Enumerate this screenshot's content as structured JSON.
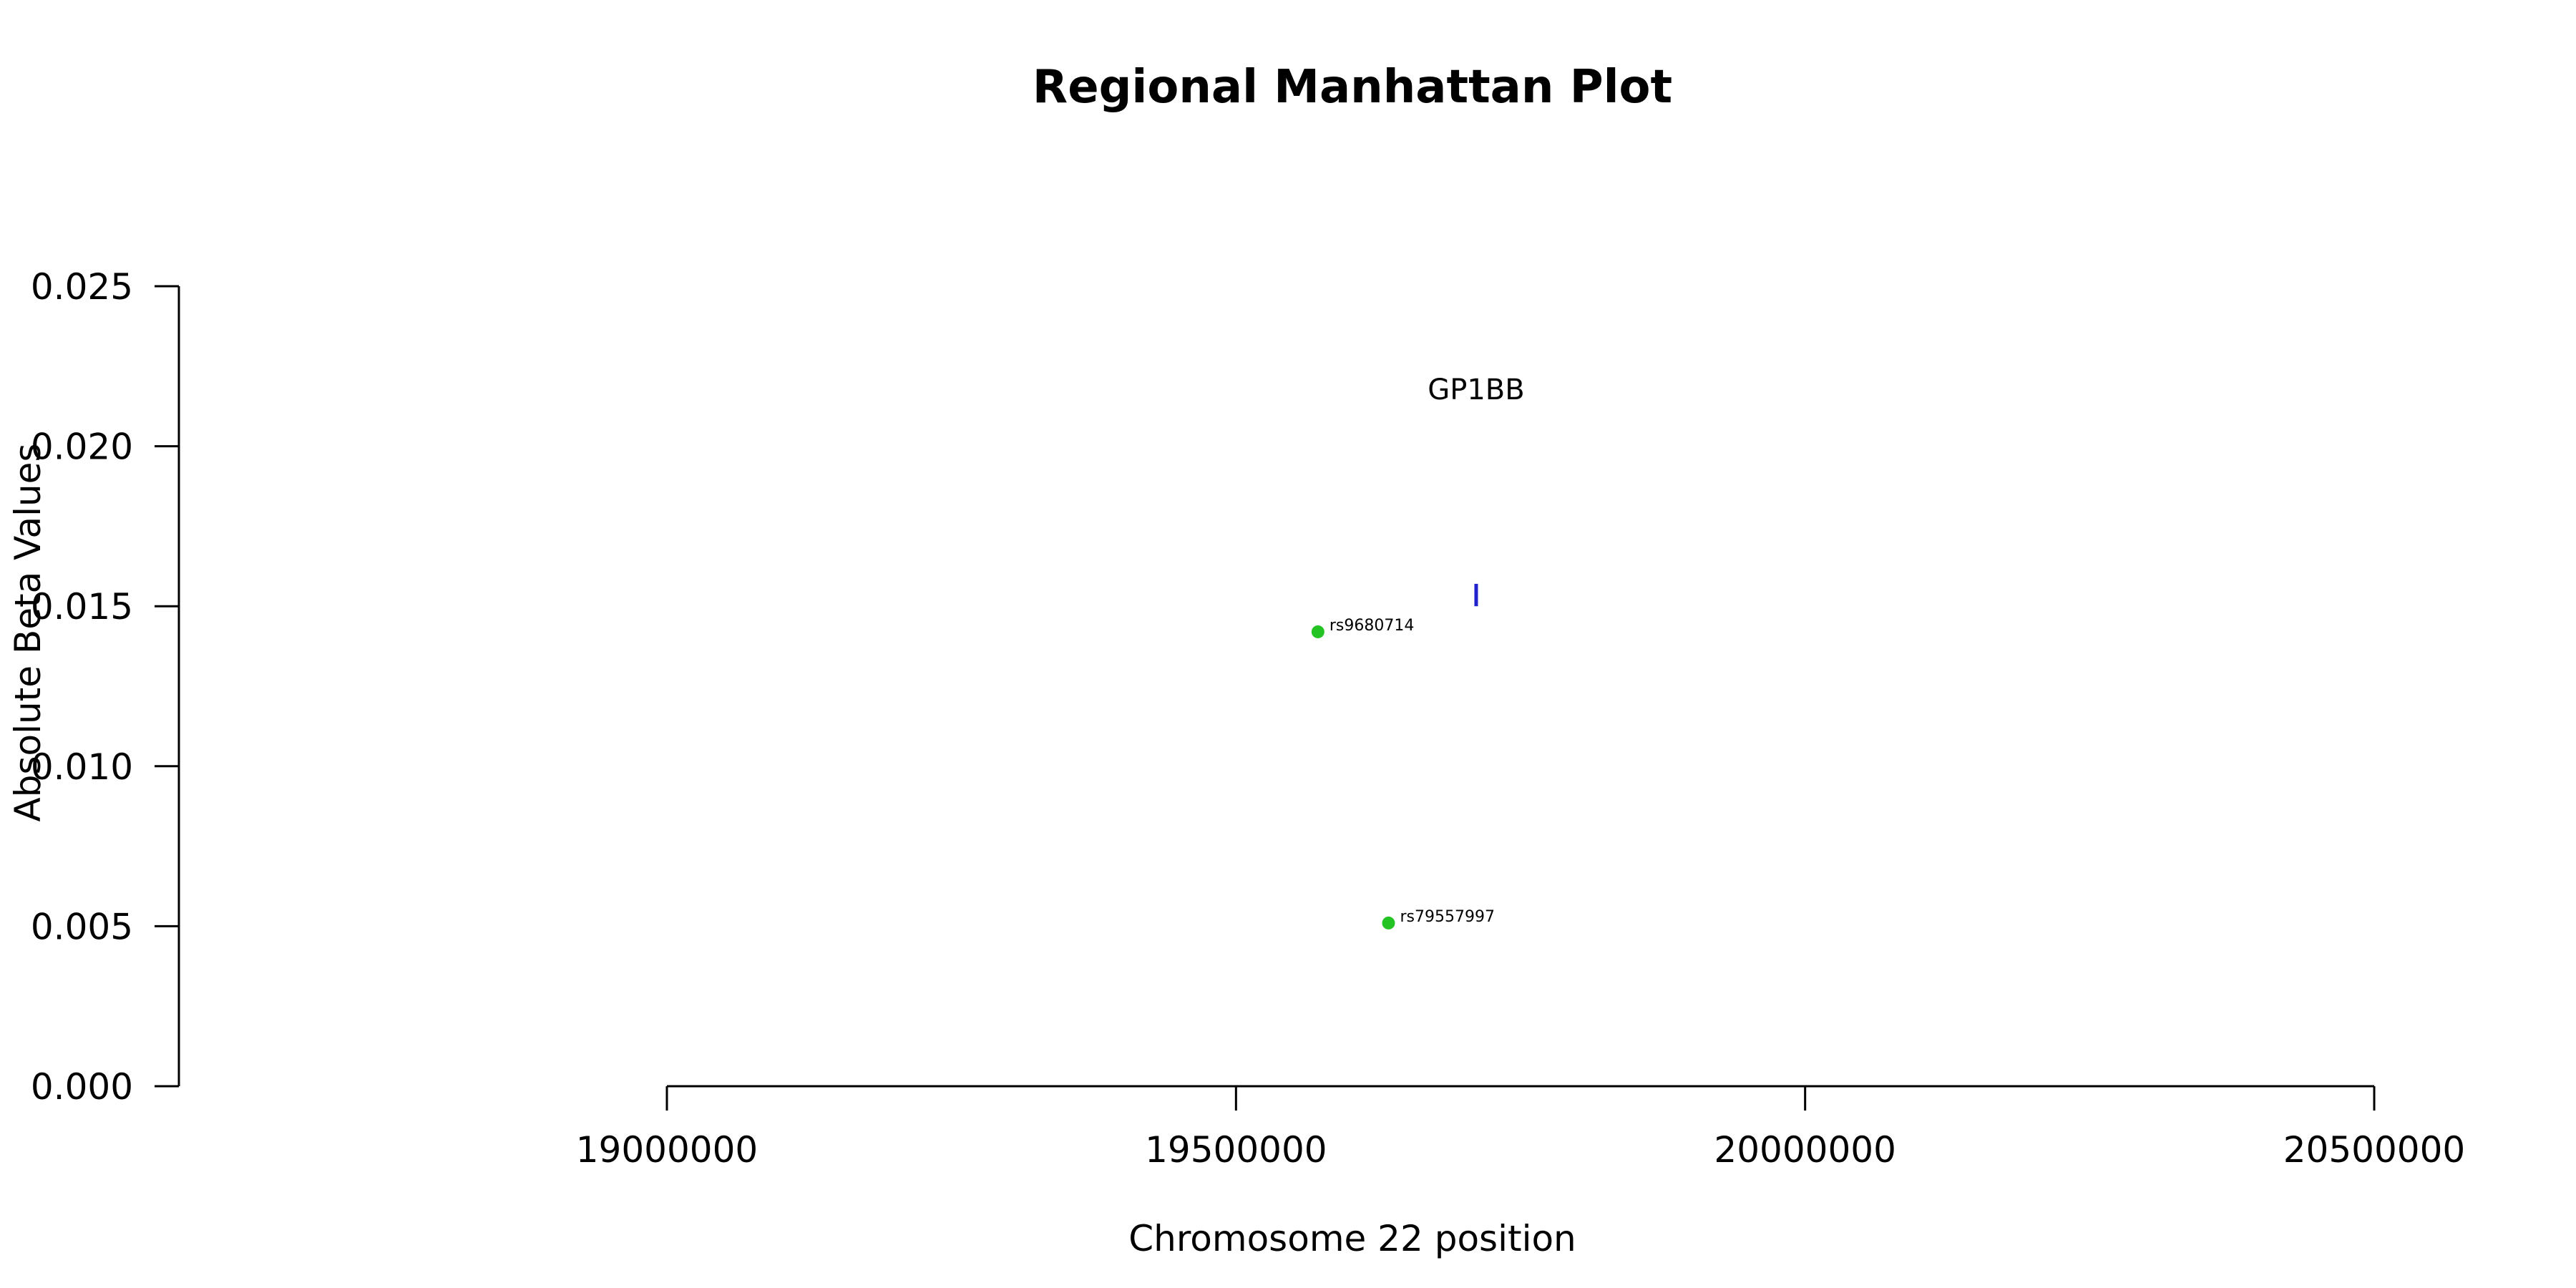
{
  "chart_data": {
    "type": "scatter",
    "title": "Regional Manhattan Plot",
    "xlabel": "Chromosome 22 position",
    "ylabel": "Absolute Beta Values",
    "xlim": [
      18570000,
      20570000
    ],
    "ylim": [
      0,
      0.025
    ],
    "x_ticks": [
      19000000,
      19500000,
      20000000,
      20500000
    ],
    "x_tick_labels": [
      "19000000",
      "19500000",
      "20000000",
      "20500000"
    ],
    "y_ticks": [
      0,
      0.005,
      0.01,
      0.015,
      0.02,
      0.025
    ],
    "y_tick_labels": [
      "0.000",
      "0.005",
      "0.010",
      "0.015",
      "0.020",
      "0.025"
    ],
    "grid": false,
    "series": [
      {
        "points": [
          {
            "label": "rs9680714",
            "x": 19572000,
            "y": 0.0142
          },
          {
            "label": "rs79557997",
            "x": 19634000,
            "y": 0.0051
          }
        ],
        "color": "#22c322"
      }
    ],
    "genes": [
      {
        "name": "GP1BB",
        "x": 19711000,
        "y_start": 0.015,
        "y_end": 0.0157,
        "color": "#2222cc"
      }
    ]
  }
}
